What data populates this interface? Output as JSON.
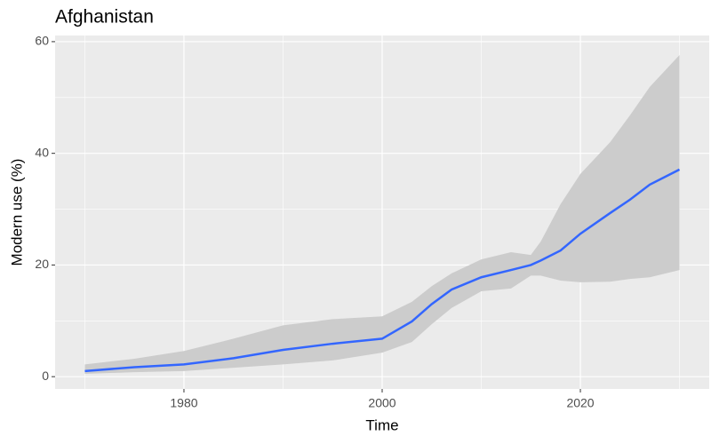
{
  "chart_data": {
    "type": "line",
    "title": "Afghanistan",
    "x_label": "Time",
    "y_label": "Modern use (%)",
    "x": [
      1970,
      1975,
      1980,
      1985,
      1990,
      1995,
      2000,
      2003,
      2005,
      2007,
      2010,
      2013,
      2015,
      2016,
      2018,
      2020,
      2023,
      2025,
      2027,
      2030
    ],
    "series": [
      {
        "color": "#3366ff",
        "values": [
          1.0,
          1.7,
          2.2,
          3.3,
          4.8,
          5.9,
          6.8,
          9.9,
          13.0,
          15.6,
          17.8,
          19.1,
          20.0,
          20.8,
          22.6,
          25.6,
          29.3,
          31.7,
          34.4,
          37.1
        ]
      }
    ],
    "lower": [
      0.5,
      0.8,
      1.0,
      1.6,
      2.2,
      2.9,
      4.3,
      6.2,
      9.4,
      12.3,
      15.3,
      15.8,
      18.1,
      18.1,
      17.2,
      16.9,
      17.0,
      17.5,
      17.8,
      19.1
    ],
    "upper": [
      2.2,
      3.2,
      4.6,
      6.8,
      9.2,
      10.3,
      10.8,
      13.4,
      16.2,
      18.5,
      21.0,
      22.3,
      21.8,
      24.2,
      30.9,
      36.3,
      42.0,
      46.8,
      51.9,
      57.6
    ],
    "ribbon_color": "#cccccc",
    "xlim": [
      1967,
      2033
    ],
    "ylim": [
      -2.2,
      61.1
    ],
    "xticks": [
      1980,
      2000,
      2020
    ],
    "yticks": [
      0,
      20,
      40,
      60
    ],
    "grid": true
  }
}
